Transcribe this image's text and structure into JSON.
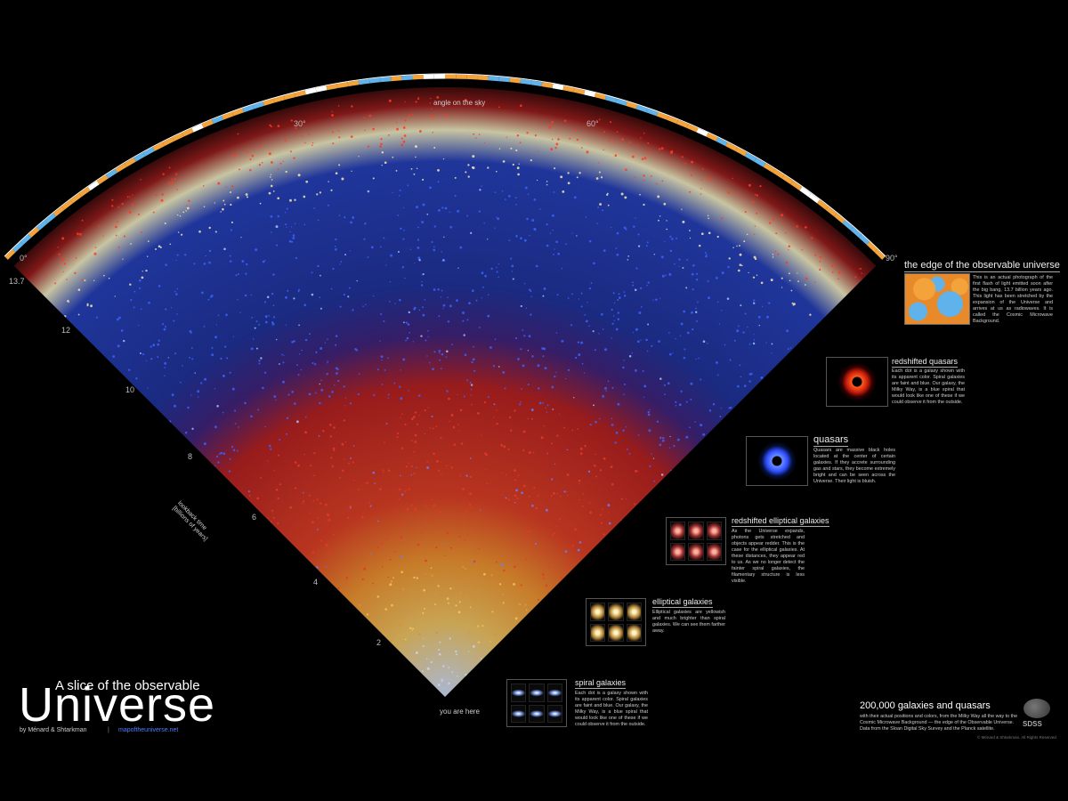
{
  "axes": {
    "angle_label": "angle on the sky",
    "angle_ticks": [
      "0°",
      "30°",
      "60°",
      "90°"
    ],
    "lookback_label_line1": "lookback time",
    "lookback_label_line2": "[billions of years]",
    "lookback_ticks": [
      "13.7",
      "12",
      "10",
      "8",
      "6",
      "4",
      "2"
    ],
    "origin_label": "you are here"
  },
  "legends": [
    {
      "title": "the edge of the observable universe",
      "desc": "This is an actual photograph of the first flash of light emitted soon after the big bang, 13.7 billion years ago. This light has been stretched by the expansion of the Universe and arrives at us as radiowaves. It is called the Cosmic Microwave Background.",
      "thumb_icon": "cmb-map-icon"
    },
    {
      "title": "redshifted quasars",
      "desc": "Each dot is a galaxy shown with its apparent color. Spiral galaxies are faint and blue. Our galaxy, the Milky Way, is a blue spiral that would look like one of these if we could observe it from the outside.",
      "thumb_icon": "red-quasar-icon"
    },
    {
      "title": "quasars",
      "desc": "Quasars are massive black holes located at the center of certain galaxies. If they accrete surrounding gas and stars, they become extremely bright and can be seen across the Universe. Their light is bluish.",
      "thumb_icon": "blue-quasar-icon"
    },
    {
      "title": "redshifted elliptical galaxies",
      "desc": "As the Universe expands, photons gets stretched and objects appear redder. This is the case for the elliptical galaxies. At these distances, they appear red to us. As we no longer detect the fainter spiral galaxies, the filamentary structure is less visible.",
      "thumb_icon": "red-elliptical-grid-icon"
    },
    {
      "title": "elliptical galaxies",
      "desc": "Elliptical galaxies are yellowish and much brighter than spiral galaxies. We can see them farther away.",
      "thumb_icon": "elliptical-grid-icon"
    },
    {
      "title": "spiral galaxies",
      "desc": "Each dot is a galaxy shown with its apparent color. Spiral galaxies are faint and blue. Our galaxy, the Milky Way, is a blue spiral that would look like one of these if we could observe it from the outside.",
      "thumb_icon": "spiral-grid-icon"
    }
  ],
  "title": {
    "line1": "A slice of the observable",
    "big": "Universe",
    "byline": "by Ménard & Shtarkman",
    "separator": "|",
    "url": "mapoftheuniverse.net"
  },
  "footer": {
    "headline": "200,000 galaxies and quasars",
    "text": "with their actual positions and colors, from the Milky Way all the way to the Cosmic Microwave Background — the edge of the Observable Universe. Data from the Sloan Digital Sky Survey and the Planck satellite.",
    "logo_text": "SDSS",
    "copyright": "© Ménard & Shtarkman. All Rights Reserved"
  },
  "colors": {
    "background": "#000000",
    "spiral": "#9ec4ff",
    "elliptical": "#f2c65a",
    "red_elliptical": "#e23b2a",
    "quasar": "#3b62ff",
    "red_quasar": "#ff3a1e",
    "cmb_warm": "#f3a33a",
    "cmb_cool": "#5fb3ea"
  }
}
